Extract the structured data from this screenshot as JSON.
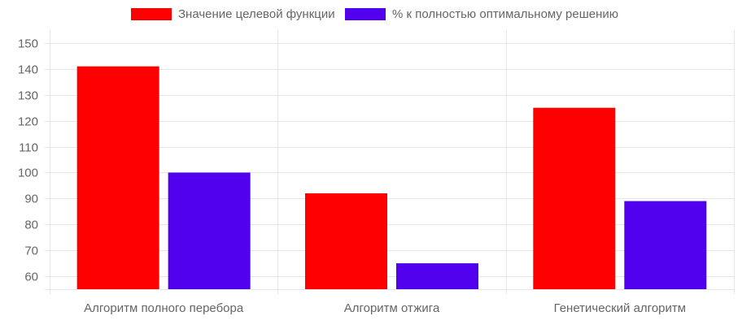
{
  "chart_data": {
    "type": "bar",
    "categories": [
      "Алгоритм полного перебора",
      "Алгоритм отжига",
      "Генетический алгоритм"
    ],
    "series": [
      {
        "name": "Значение целевой функции",
        "color": "#ff0000",
        "values": [
          141,
          92,
          125
        ]
      },
      {
        "name": "% к полностью оптимальному решению",
        "color": "#5000ec",
        "values": [
          100,
          65,
          89
        ]
      }
    ],
    "y_ticks": [
      60,
      70,
      80,
      90,
      100,
      110,
      120,
      130,
      140,
      150
    ],
    "ylim": [
      55,
      155
    ],
    "grid": true,
    "legend_position": "top-center"
  }
}
